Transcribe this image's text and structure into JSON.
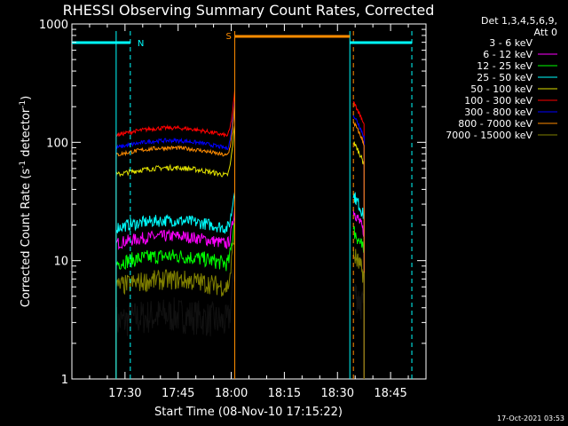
{
  "chart_data": {
    "type": "line",
    "title": "RHESSI Observing Summary Count Rates, Corrected",
    "xlabel": "Start Time (08-Nov-10 17:15:22)",
    "ylabel_main": "Corrected Count Rate (s",
    "ylabel_sup1": "-1",
    "ylabel_mid": " detector",
    "ylabel_sup2": "-1",
    "ylabel_end": ")",
    "yscale": "log",
    "ylim": [
      1,
      1000
    ],
    "xlim_minutes": [
      0,
      100
    ],
    "x_ticks": [
      {
        "label": "17:30",
        "min": 15
      },
      {
        "label": "17:45",
        "min": 30
      },
      {
        "label": "18:00",
        "min": 45
      },
      {
        "label": "18:15",
        "min": 60
      },
      {
        "label": "18:30",
        "min": 75
      },
      {
        "label": "18:45",
        "min": 90
      }
    ],
    "y_ticks": [
      {
        "label": "1",
        "value": 1
      },
      {
        "label": "10",
        "value": 10
      },
      {
        "label": "100",
        "value": 100
      },
      {
        "label": "1000",
        "value": 1000
      }
    ],
    "detector_info": [
      "Det 1,3,4,5,6,9,",
      "Att 0"
    ],
    "timestamp": "17-Oct-2021 03:53",
    "series": [
      {
        "name": "3 - 6 keV",
        "color": "#000000",
        "base": 3.0,
        "spike": 10,
        "noise": 0.35
      },
      {
        "name": "6 - 12 keV",
        "color": "#ff00ff",
        "base": 14,
        "spike": 30,
        "noise": 0.12
      },
      {
        "name": "12 - 25 keV",
        "color": "#00ff00",
        "base": 9.5,
        "spike": 25,
        "noise": 0.15
      },
      {
        "name": "25 - 50 keV",
        "color": "#00ffff",
        "base": 19,
        "spike": 45,
        "noise": 0.12
      },
      {
        "name": "50 - 100 keV",
        "color": "#e0e000",
        "base": 53,
        "spike": 150,
        "noise": 0.05
      },
      {
        "name": "100 - 300 keV",
        "color": "#ff0000",
        "base": 115,
        "spike": 280,
        "noise": 0.04
      },
      {
        "name": "300 - 800 keV",
        "color": "#0000ff",
        "base": 90,
        "spike": 230,
        "noise": 0.04
      },
      {
        "name": "800 - 7000 keV",
        "color": "#ff8c00",
        "base": 78,
        "spike": 210,
        "noise": 0.04
      },
      {
        "name": "7000 - 15000 keV",
        "color": "#808000",
        "base": 6.0,
        "spike": 20,
        "noise": 0.2
      }
    ],
    "segments": [
      {
        "start_min": 12.5,
        "end_min": 46.0
      },
      {
        "start_min": 79.5,
        "end_min": 82.5
      }
    ],
    "flags": [
      {
        "label": "N",
        "color": "#00ffff",
        "bars": [
          [
            0,
            16.5
          ],
          [
            78.5,
            96
          ]
        ]
      },
      {
        "label": "S",
        "color": "#ff8c00",
        "bars": [
          [
            46,
            78.5
          ]
        ]
      }
    ],
    "vlines": [
      {
        "min": 12.5,
        "color": "#00ffff",
        "dashed": false
      },
      {
        "min": 16.5,
        "color": "#00ffff",
        "dashed": true
      },
      {
        "min": 46.0,
        "color": "#ff8c00",
        "dashed": false
      },
      {
        "min": 78.5,
        "color": "#00ffff",
        "dashed": false
      },
      {
        "min": 79.5,
        "color": "#ff8c00",
        "dashed": true
      },
      {
        "min": 96.0,
        "color": "#00ffff",
        "dashed": true
      }
    ]
  }
}
